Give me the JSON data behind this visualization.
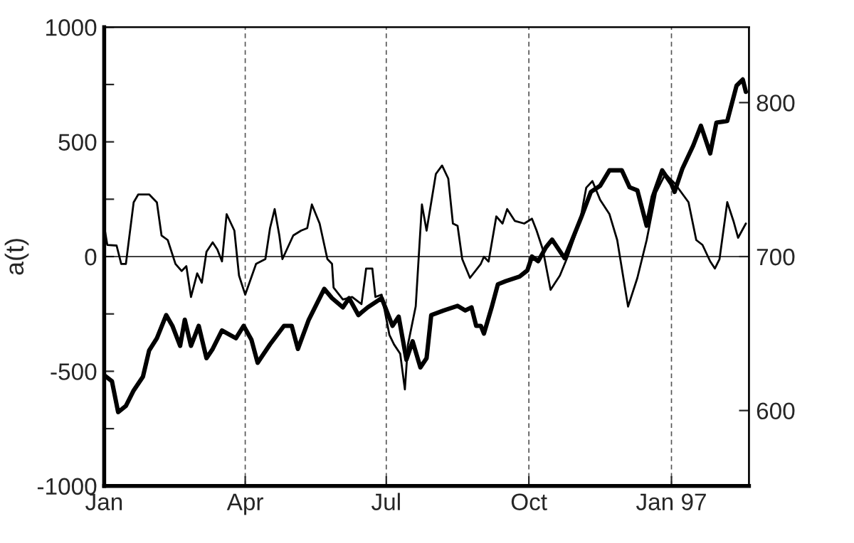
{
  "chart_data": {
    "type": "line",
    "ylabel": "a(t)",
    "xlim": [
      "1996-01-01",
      "1997-02-20"
    ],
    "xticks": [
      {
        "value": "1996-01-01",
        "label": "Jan"
      },
      {
        "value": "1996-04-01",
        "label": "Apr"
      },
      {
        "value": "1996-07-01",
        "label": "Jul"
      },
      {
        "value": "1996-10-01",
        "label": "Oct"
      },
      {
        "value": "1997-01-01",
        "label": "Jan 97"
      }
    ],
    "ylim": [
      -1000,
      1000
    ],
    "yticks": [
      -1000,
      {
        "value": -750,
        "label": null
      },
      -500,
      {
        "value": -250,
        "label": null
      },
      0,
      {
        "value": 250,
        "label": null
      },
      500,
      {
        "value": 750,
        "label": null
      },
      1000
    ],
    "y2lim": [
      551,
      849
    ],
    "y2ticks": [
      600,
      700,
      800
    ],
    "grid": "x",
    "legend": false,
    "marker": "none",
    "line_style": "solid",
    "ref_lines": [
      {
        "axis": "y",
        "value": 0,
        "color": "#000000"
      }
    ],
    "series": [
      {
        "color": "#000000",
        "x": [
          "1996-01-01",
          "1996-01-03",
          "1996-01-09",
          "1996-01-12",
          "1996-01-15",
          "1996-01-20",
          "1996-01-23",
          "1996-01-30",
          "1996-02-04",
          "1996-02-07",
          "1996-02-11",
          "1996-02-16",
          "1996-02-20",
          "1996-02-23",
          "1996-02-26",
          "1996-03-01",
          "1996-03-04",
          "1996-03-07",
          "1996-03-11",
          "1996-03-14",
          "1996-03-17",
          "1996-03-20",
          "1996-03-25",
          "1996-03-28",
          "1996-04-01",
          "1996-04-08",
          "1996-04-14",
          "1996-04-17",
          "1996-04-20",
          "1996-04-23",
          "1996-04-25",
          "1996-05-02",
          "1996-05-07",
          "1996-05-11",
          "1996-05-14",
          "1996-05-19",
          "1996-05-24",
          "1996-05-27",
          "1996-05-28",
          "1996-06-03",
          "1996-06-09",
          "1996-06-15",
          "1996-06-18",
          "1996-06-22",
          "1996-06-24",
          "1996-06-28",
          "1996-07-03",
          "1996-07-06",
          "1996-07-10",
          "1996-07-13",
          "1996-07-15",
          "1996-07-20",
          "1996-07-24",
          "1996-07-27",
          "1996-08-02",
          "1996-08-06",
          "1996-08-10",
          "1996-08-13",
          "1996-08-16",
          "1996-08-19",
          "1996-08-24",
          "1996-08-31",
          "1996-09-02",
          "1996-09-05",
          "1996-09-10",
          "1996-09-14",
          "1996-09-17",
          "1996-09-22",
          "1996-09-28",
          "1996-10-03",
          "1996-10-06",
          "1996-10-10",
          "1996-10-15",
          "1996-10-21",
          "1996-10-26",
          "1996-11-03",
          "1996-11-07",
          "1996-11-11",
          "1996-11-16",
          "1996-11-22",
          "1996-11-27",
          "1996-12-04",
          "1996-12-10",
          "1996-12-16",
          "1996-12-22",
          "1996-12-28",
          "1997-01-03",
          "1997-01-12",
          "1997-01-17",
          "1997-01-21",
          "1997-01-26",
          "1997-01-29",
          "1997-02-01",
          "1997-02-06",
          "1997-02-10",
          "1997-02-13",
          "1997-02-18"
        ],
        "values": [
          133,
          51,
          48,
          -32,
          -32,
          236,
          271,
          271,
          236,
          92,
          72,
          -32,
          -63,
          -42,
          -176,
          -73,
          -114,
          21,
          62,
          31,
          -21,
          185,
          113,
          -83,
          -166,
          -32,
          -11,
          124,
          207,
          92,
          -11,
          92,
          113,
          124,
          227,
          144,
          -11,
          -32,
          -135,
          -187,
          -176,
          -207,
          -52,
          -52,
          -176,
          -166,
          -341,
          -383,
          -424,
          -579,
          -383,
          -217,
          227,
          113,
          360,
          397,
          340,
          144,
          134,
          -11,
          -93,
          -32,
          -1,
          -22,
          175,
          144,
          207,
          155,
          144,
          165,
          113,
          31,
          -145,
          -83,
          -1,
          155,
          300,
          329,
          247,
          185,
          72,
          -218,
          -93,
          72,
          278,
          360,
          320,
          237,
          72,
          51,
          -21,
          -52,
          -11,
          237,
          155,
          82,
          144
        ]
      },
      {
        "color": "#000000",
        "axis": "y2",
        "x": [
          "1996-01-01",
          "1996-01-06",
          "1996-01-10",
          "1996-01-15",
          "1996-01-20",
          "1996-01-26",
          "1996-01-30",
          "1996-02-04",
          "1996-02-10",
          "1996-02-14",
          "1996-02-19",
          "1996-02-22",
          "1996-02-26",
          "1996-03-02",
          "1996-03-07",
          "1996-03-11",
          "1996-03-17",
          "1996-03-26",
          "1996-03-31",
          "1996-04-05",
          "1996-04-09",
          "1996-04-17",
          "1996-04-26",
          "1996-05-01",
          "1996-05-05",
          "1996-05-12",
          "1996-05-22",
          "1996-05-27",
          "1996-06-03",
          "1996-06-07",
          "1996-06-13",
          "1996-06-19",
          "1996-06-28",
          "1996-07-05",
          "1996-07-09",
          "1996-07-14",
          "1996-07-18",
          "1996-07-23",
          "1996-07-27",
          "1996-07-30",
          "1996-08-07",
          "1996-08-16",
          "1996-08-21",
          "1996-08-25",
          "1996-08-28",
          "1996-08-31",
          "1996-09-02",
          "1996-09-07",
          "1996-09-11",
          "1996-09-16",
          "1996-09-25",
          "1996-09-30",
          "1996-10-03",
          "1996-10-07",
          "1996-10-12",
          "1996-10-16",
          "1996-10-24",
          "1996-10-29",
          "1996-11-04",
          "1996-11-10",
          "1996-11-16",
          "1996-11-22",
          "1996-11-30",
          "1996-12-05",
          "1996-12-10",
          "1996-12-16",
          "1996-12-20",
          "1996-12-26",
          "1997-01-01",
          "1997-01-03",
          "1997-01-08",
          "1997-01-15",
          "1997-01-20",
          "1997-01-26",
          "1997-01-30",
          "1997-02-06",
          "1997-02-12",
          "1997-02-16",
          "1997-02-18"
        ],
        "values": [
          623,
          619,
          599,
          603,
          613,
          622,
          639,
          647,
          662,
          655,
          642,
          659,
          642,
          655,
          634,
          640,
          652,
          647,
          655,
          646,
          631,
          643,
          655,
          655,
          640,
          659,
          679,
          673,
          667,
          673,
          662,
          667,
          673,
          655,
          661,
          633,
          645,
          628,
          634,
          662,
          665,
          668,
          665,
          667,
          655,
          655,
          650,
          667,
          682,
          684,
          687,
          691,
          700,
          697,
          706,
          711,
          699,
          711,
          726,
          742,
          746,
          756,
          756,
          745,
          743,
          720,
          739,
          756,
          747,
          742,
          757,
          772,
          785,
          767,
          787,
          788,
          811,
          815,
          807
        ]
      }
    ]
  }
}
